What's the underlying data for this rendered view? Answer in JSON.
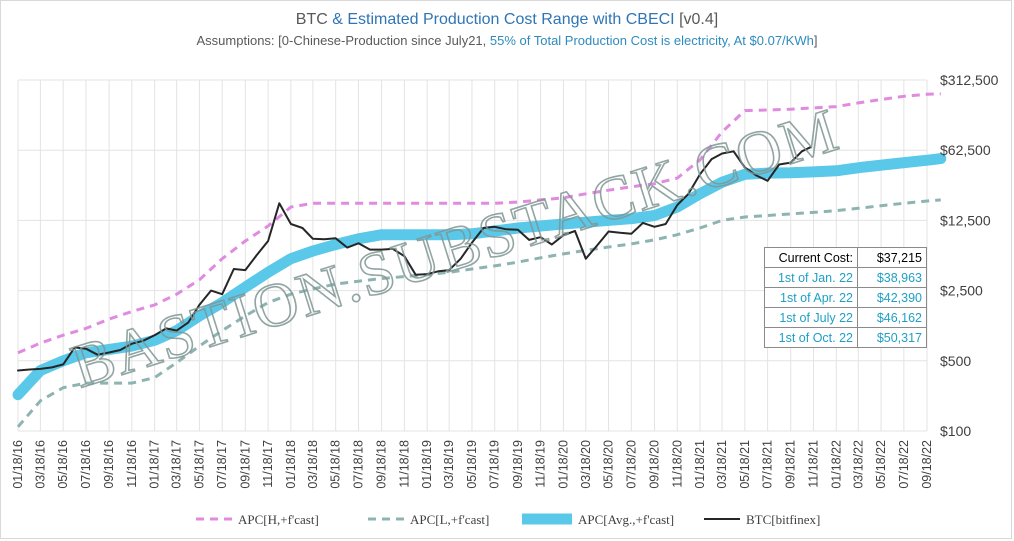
{
  "title": {
    "part1": "BTC ",
    "part2": "& Estimated Production Cost Range with CBECI",
    "part3": "  [v0.4]"
  },
  "subtitle": {
    "part1": "Assumptions: [0-Chinese-Production  since July21, ",
    "part2": "55% of Total Production  Cost is electricity, At $0.07/KWh",
    "part3": "]"
  },
  "watermark": "BASTION.SUBSTACK.COM",
  "cost_table": [
    {
      "label": "Current Cost:",
      "value": "$37,215"
    },
    {
      "label": "1st of Jan. 22",
      "value": "$38,963"
    },
    {
      "label": "1st of Apr. 22",
      "value": "$42,390"
    },
    {
      "label": "1st of July 22",
      "value": "$46,162"
    },
    {
      "label": "1st of Oct. 22",
      "value": "$50,317"
    }
  ],
  "chart_data": {
    "type": "line",
    "x_ticks": [
      "01/18/16",
      "03/18/16",
      "05/18/16",
      "07/18/16",
      "09/18/16",
      "11/18/16",
      "01/18/17",
      "03/18/17",
      "05/18/17",
      "07/18/17",
      "09/18/17",
      "11/18/17",
      "01/18/18",
      "03/18/18",
      "05/18/18",
      "07/18/18",
      "09/18/18",
      "11/18/18",
      "01/18/19",
      "03/18/19",
      "05/18/19",
      "07/18/19",
      "09/18/19",
      "11/18/19",
      "01/18/20",
      "03/18/20",
      "05/18/20",
      "07/18/20",
      "09/18/20",
      "11/18/20",
      "01/18/21",
      "03/18/21",
      "05/18/21",
      "07/18/21",
      "09/18/21",
      "11/18/21",
      "01/18/22",
      "03/18/22",
      "05/18/22",
      "07/18/22",
      "09/18/22"
    ],
    "y_scale": "log",
    "y_ticks": [
      {
        "value": 100,
        "label": "$100"
      },
      {
        "value": 500,
        "label": "$500"
      },
      {
        "value": 2500,
        "label": "$2,500"
      },
      {
        "value": 12500,
        "label": "$12,500"
      },
      {
        "value": 62500,
        "label": "$62,500"
      },
      {
        "value": 312500,
        "label": "$312,500"
      }
    ],
    "ylim": [
      100,
      312500
    ],
    "grid": true,
    "legend_position": "bottom",
    "series": [
      {
        "name": "APC[H,+f'cast]",
        "color": "#e08be0",
        "style": "dashed",
        "width": 3,
        "points": [
          [
            "01/18/16",
            600
          ],
          [
            "03/18/16",
            750
          ],
          [
            "05/18/16",
            900
          ],
          [
            "07/18/16",
            1050
          ],
          [
            "09/18/16",
            1300
          ],
          [
            "11/18/16",
            1550
          ],
          [
            "01/18/17",
            1800
          ],
          [
            "03/18/17",
            2300
          ],
          [
            "05/18/17",
            3200
          ],
          [
            "07/18/17",
            5200
          ],
          [
            "09/18/17",
            7800
          ],
          [
            "11/18/17",
            11000
          ],
          [
            "01/18/18",
            17000
          ],
          [
            "03/18/18",
            18500
          ],
          [
            "05/18/18",
            18500
          ],
          [
            "07/18/18",
            18500
          ],
          [
            "09/18/18",
            18500
          ],
          [
            "11/18/18",
            18500
          ],
          [
            "01/18/19",
            18500
          ],
          [
            "03/18/19",
            18500
          ],
          [
            "05/18/19",
            18500
          ],
          [
            "07/18/19",
            18500
          ],
          [
            "09/18/19",
            19000
          ],
          [
            "11/18/19",
            20000
          ],
          [
            "01/18/20",
            21000
          ],
          [
            "03/18/20",
            23000
          ],
          [
            "05/18/20",
            25000
          ],
          [
            "07/18/20",
            27000
          ],
          [
            "09/18/20",
            29000
          ],
          [
            "11/18/20",
            33000
          ],
          [
            "01/18/21",
            50000
          ],
          [
            "03/18/21",
            95000
          ],
          [
            "05/18/21",
            155000
          ],
          [
            "07/18/21",
            157000
          ],
          [
            "09/18/21",
            160000
          ],
          [
            "11/18/21",
            165000
          ],
          [
            "01/18/22",
            170000
          ],
          [
            "03/18/22",
            185000
          ],
          [
            "05/18/22",
            200000
          ],
          [
            "07/18/22",
            215000
          ],
          [
            "09/18/22",
            225000
          ],
          [
            "10/25/22",
            228000
          ]
        ]
      },
      {
        "name": "APC[L,+f'cast]",
        "color": "#8eb4b2",
        "style": "dashed",
        "width": 3,
        "points": [
          [
            "01/18/16",
            110
          ],
          [
            "03/18/16",
            200
          ],
          [
            "05/18/16",
            270
          ],
          [
            "07/18/16",
            300
          ],
          [
            "09/18/16",
            300
          ],
          [
            "11/18/16",
            300
          ],
          [
            "01/18/17",
            340
          ],
          [
            "03/18/17",
            480
          ],
          [
            "05/18/17",
            700
          ],
          [
            "07/18/17",
            1000
          ],
          [
            "09/18/17",
            1400
          ],
          [
            "11/18/17",
            1900
          ],
          [
            "01/18/18",
            2300
          ],
          [
            "03/18/18",
            2600
          ],
          [
            "05/18/18",
            2900
          ],
          [
            "07/18/18",
            3100
          ],
          [
            "09/18/18",
            3300
          ],
          [
            "11/18/18",
            3450
          ],
          [
            "01/18/19",
            3600
          ],
          [
            "03/18/19",
            3800
          ],
          [
            "05/18/19",
            4100
          ],
          [
            "07/18/19",
            4400
          ],
          [
            "09/18/19",
            4800
          ],
          [
            "11/18/19",
            5300
          ],
          [
            "01/18/20",
            5800
          ],
          [
            "03/18/20",
            6300
          ],
          [
            "05/18/20",
            6800
          ],
          [
            "07/18/20",
            7300
          ],
          [
            "09/18/20",
            8000
          ],
          [
            "11/18/20",
            9000
          ],
          [
            "01/18/21",
            10500
          ],
          [
            "03/18/21",
            12500
          ],
          [
            "05/18/21",
            13500
          ],
          [
            "07/18/21",
            14000
          ],
          [
            "09/18/21",
            14500
          ],
          [
            "11/18/21",
            15000
          ],
          [
            "01/18/22",
            15600
          ],
          [
            "03/18/22",
            16500
          ],
          [
            "05/18/22",
            17500
          ],
          [
            "07/18/22",
            18500
          ],
          [
            "09/18/22",
            19500
          ],
          [
            "10/25/22",
            20000
          ]
        ]
      },
      {
        "name": "APC[Avg.,+f'cast]",
        "color": "#5ac8e8",
        "style": "solid",
        "width": 11,
        "points": [
          [
            "01/18/16",
            230
          ],
          [
            "03/18/16",
            400
          ],
          [
            "05/18/16",
            500
          ],
          [
            "07/18/16",
            600
          ],
          [
            "09/18/16",
            650
          ],
          [
            "11/18/16",
            700
          ],
          [
            "01/18/17",
            800
          ],
          [
            "03/18/17",
            1000
          ],
          [
            "05/18/17",
            1400
          ],
          [
            "07/18/17",
            1900
          ],
          [
            "09/18/17",
            2700
          ],
          [
            "11/18/17",
            3800
          ],
          [
            "01/18/18",
            5200
          ],
          [
            "03/18/18",
            6200
          ],
          [
            "05/18/18",
            7200
          ],
          [
            "07/18/18",
            8200
          ],
          [
            "09/18/18",
            9000
          ],
          [
            "11/18/18",
            9000
          ],
          [
            "01/18/19",
            9000
          ],
          [
            "03/18/19",
            9000
          ],
          [
            "05/18/19",
            9200
          ],
          [
            "07/18/19",
            9800
          ],
          [
            "09/18/19",
            10500
          ],
          [
            "11/18/19",
            11000
          ],
          [
            "01/18/20",
            11500
          ],
          [
            "03/18/20",
            12000
          ],
          [
            "05/18/20",
            12500
          ],
          [
            "07/18/20",
            13000
          ],
          [
            "09/18/20",
            14000
          ],
          [
            "11/18/20",
            17000
          ],
          [
            "01/18/21",
            23000
          ],
          [
            "03/18/21",
            30000
          ],
          [
            "05/18/21",
            36000
          ],
          [
            "07/18/21",
            37000
          ],
          [
            "09/18/21",
            37215
          ],
          [
            "11/18/21",
            38000
          ],
          [
            "01/18/22",
            38963
          ],
          [
            "04/01/22",
            42390
          ],
          [
            "07/01/22",
            46162
          ],
          [
            "10/01/22",
            50317
          ],
          [
            "10/25/22",
            51500
          ]
        ]
      },
      {
        "name": "BTC[bitfinex]",
        "color": "#262626",
        "style": "solid",
        "width": 2,
        "points": [
          [
            "01/18/16",
            400
          ],
          [
            "02/18/16",
            410
          ],
          [
            "03/18/16",
            415
          ],
          [
            "04/18/16",
            430
          ],
          [
            "05/18/16",
            460
          ],
          [
            "06/18/16",
            680
          ],
          [
            "07/18/16",
            660
          ],
          [
            "08/18/16",
            575
          ],
          [
            "09/18/16",
            605
          ],
          [
            "10/18/16",
            640
          ],
          [
            "11/18/16",
            740
          ],
          [
            "12/18/16",
            790
          ],
          [
            "01/18/17",
            900
          ],
          [
            "02/18/17",
            1050
          ],
          [
            "03/18/17",
            1000
          ],
          [
            "04/18/17",
            1200
          ],
          [
            "05/18/17",
            1800
          ],
          [
            "06/18/17",
            2500
          ],
          [
            "07/18/17",
            2300
          ],
          [
            "08/18/17",
            4100
          ],
          [
            "09/18/17",
            4000
          ],
          [
            "10/18/17",
            5600
          ],
          [
            "11/18/17",
            7800
          ],
          [
            "12/18/17",
            18500
          ],
          [
            "01/18/18",
            11500
          ],
          [
            "02/18/18",
            10500
          ],
          [
            "03/18/18",
            8200
          ],
          [
            "04/18/18",
            8100
          ],
          [
            "05/18/18",
            8300
          ],
          [
            "06/18/18",
            6700
          ],
          [
            "07/18/18",
            7400
          ],
          [
            "08/18/18",
            6400
          ],
          [
            "09/18/18",
            6400
          ],
          [
            "10/18/18",
            6500
          ],
          [
            "11/18/18",
            5500
          ],
          [
            "12/18/18",
            3600
          ],
          [
            "01/18/19",
            3650
          ],
          [
            "02/18/19",
            3900
          ],
          [
            "03/18/19",
            4000
          ],
          [
            "04/18/19",
            5200
          ],
          [
            "05/18/19",
            7500
          ],
          [
            "06/18/19",
            10500
          ],
          [
            "07/18/19",
            10800
          ],
          [
            "08/18/19",
            10200
          ],
          [
            "09/18/19",
            10100
          ],
          [
            "10/18/19",
            8000
          ],
          [
            "11/18/19",
            8500
          ],
          [
            "12/18/19",
            7200
          ],
          [
            "01/18/20",
            8900
          ],
          [
            "02/18/20",
            9800
          ],
          [
            "03/18/20",
            5200
          ],
          [
            "04/18/20",
            7100
          ],
          [
            "05/18/20",
            9700
          ],
          [
            "06/18/20",
            9400
          ],
          [
            "07/18/20",
            9200
          ],
          [
            "08/18/20",
            11800
          ],
          [
            "09/18/20",
            10800
          ],
          [
            "10/18/20",
            11500
          ],
          [
            "11/18/20",
            17800
          ],
          [
            "12/18/20",
            23000
          ],
          [
            "01/18/21",
            36000
          ],
          [
            "02/18/21",
            51000
          ],
          [
            "03/18/21",
            58000
          ],
          [
            "04/18/21",
            61000
          ],
          [
            "05/18/21",
            42000
          ],
          [
            "06/18/21",
            35000
          ],
          [
            "07/18/21",
            31000
          ],
          [
            "08/18/21",
            45000
          ],
          [
            "09/18/21",
            47000
          ],
          [
            "10/18/21",
            61000
          ],
          [
            "11/10/21",
            67000
          ]
        ]
      }
    ]
  }
}
